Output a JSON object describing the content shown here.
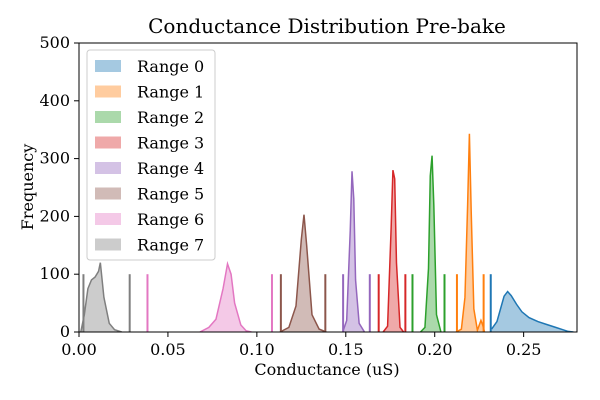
{
  "chart_data": {
    "type": "histogram-kde",
    "title": "Conductance Distribution Pre-bake",
    "xlabel": "Conductance (uS)",
    "ylabel": "Frequency",
    "xlim": [
      0.0,
      0.28
    ],
    "ylim": [
      0,
      500
    ],
    "xticks": [
      0.0,
      0.05,
      0.1,
      0.15,
      0.2,
      0.25
    ],
    "xtick_labels": [
      "0.00",
      "0.05",
      "0.10",
      "0.15",
      "0.20",
      "0.25"
    ],
    "yticks": [
      0,
      100,
      200,
      300,
      400,
      500
    ],
    "ytick_labels": [
      "0",
      "100",
      "200",
      "300",
      "400",
      "500"
    ],
    "legend_position": "upper-left",
    "grid": false,
    "series": [
      {
        "name": "Range 0",
        "color": "#1f77b4",
        "bounds": [
          0.2315
        ],
        "bound_height": 100,
        "peak": {
          "x": [
            0.232,
            0.235,
            0.237,
            0.239,
            0.241,
            0.243,
            0.246,
            0.249,
            0.253,
            0.258,
            0.263,
            0.268,
            0.272,
            0.275,
            0.278
          ],
          "y": [
            5,
            18,
            40,
            62,
            70,
            63,
            48,
            35,
            25,
            18,
            13,
            8,
            4,
            1,
            0
          ]
        }
      },
      {
        "name": "Range 1",
        "color": "#ff7f0e",
        "bounds": [
          0.2125,
          0.2275
        ],
        "bound_height": 100,
        "peak": {
          "x": [
            0.212,
            0.215,
            0.217,
            0.2185,
            0.2195,
            0.2205,
            0.222,
            0.224,
            0.226,
            0.227,
            0.228
          ],
          "y": [
            0,
            5,
            60,
            220,
            343,
            210,
            40,
            3,
            20,
            12,
            0
          ]
        }
      },
      {
        "name": "Range 2",
        "color": "#2ca02c",
        "bounds": [
          0.1875,
          0.2055
        ],
        "bound_height": 100,
        "peak": {
          "x": [
            0.192,
            0.1945,
            0.1965,
            0.1975,
            0.1985,
            0.1995,
            0.201,
            0.2035
          ],
          "y": [
            0,
            8,
            110,
            270,
            305,
            220,
            30,
            0
          ]
        }
      },
      {
        "name": "Range 3",
        "color": "#d62728",
        "bounds": [
          0.1685,
          0.1835
        ],
        "bound_height": 100,
        "peak": {
          "x": [
            0.171,
            0.1735,
            0.1755,
            0.1765,
            0.1775,
            0.1785,
            0.1805,
            0.1825
          ],
          "y": [
            0,
            10,
            180,
            280,
            265,
            120,
            8,
            0
          ]
        }
      },
      {
        "name": "Range 4",
        "color": "#9467bd",
        "bounds": [
          0.1485,
          0.1635
        ],
        "bound_height": 100,
        "peak": {
          "x": [
            0.1485,
            0.1505,
            0.1525,
            0.1535,
            0.1545,
            0.1555,
            0.1575,
            0.1605
          ],
          "y": [
            2,
            20,
            175,
            278,
            230,
            90,
            15,
            0
          ]
        }
      },
      {
        "name": "Range 5",
        "color": "#8c564b",
        "bounds": [
          0.1135,
          0.1385
        ],
        "bound_height": 100,
        "peak": {
          "x": [
            0.113,
            0.118,
            0.122,
            0.125,
            0.1265,
            0.128,
            0.131,
            0.135,
            0.139
          ],
          "y": [
            0,
            8,
            45,
            160,
            203,
            150,
            30,
            5,
            0
          ]
        }
      },
      {
        "name": "Range 6",
        "color": "#e377c2",
        "bounds": [
          0.0385,
          0.1085
        ],
        "bound_height": 100,
        "peak": {
          "x": [
            0.068,
            0.073,
            0.077,
            0.081,
            0.0835,
            0.0855,
            0.0875,
            0.091,
            0.094,
            0.097
          ],
          "y": [
            0,
            8,
            22,
            75,
            118,
            100,
            50,
            12,
            2,
            0
          ]
        }
      },
      {
        "name": "Range 7",
        "color": "#7f7f7f",
        "bounds": [
          0.0025,
          0.0285
        ],
        "bound_height": 100,
        "peak": {
          "x": [
            0.001,
            0.003,
            0.005,
            0.007,
            0.009,
            0.011,
            0.012,
            0.014,
            0.017,
            0.02,
            0.024
          ],
          "y": [
            0,
            30,
            75,
            90,
            95,
            105,
            120,
            60,
            15,
            4,
            0
          ]
        }
      }
    ]
  }
}
